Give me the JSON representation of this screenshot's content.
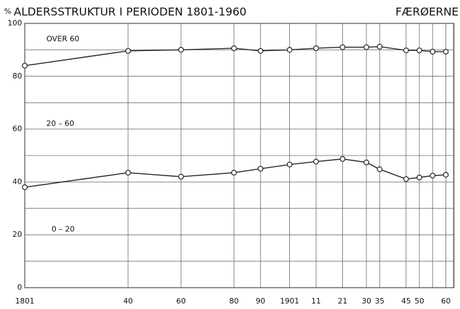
{
  "chart_data": {
    "type": "line",
    "title": "ALDERSSTRUKTUR I PERIODEN 1801-1960",
    "ylabel": "%",
    "subtitle": "FÆRØERNE",
    "annotations": [
      {
        "text": "OVER 60",
        "x": 1806,
        "y": 94
      },
      {
        "text": "20 – 60",
        "x": 1806,
        "y": 62
      },
      {
        "text": "0 – 20",
        "x": 1808,
        "y": 22
      }
    ],
    "x": [
      1801,
      1840,
      1860,
      1880,
      1890,
      1901,
      1911,
      1921,
      1930,
      1935,
      1945,
      1950,
      1955,
      1960
    ],
    "series": [
      {
        "color": "#222",
        "values": [
          84,
          89.6,
          90,
          90.6,
          89.6,
          90,
          90.6,
          91,
          91,
          91.2,
          89.8,
          89.8,
          89.3,
          89.3
        ]
      },
      {
        "color": "#222",
        "values": [
          38,
          43.5,
          42,
          43.5,
          45,
          46.6,
          47.7,
          48.7,
          47.4,
          44.8,
          41.1,
          41.7,
          42.4,
          42.7
        ]
      }
    ],
    "xlim": [
      1801,
      1963
    ],
    "ylim": [
      0,
      100
    ],
    "yticks": [
      0,
      20,
      40,
      60,
      80,
      100
    ],
    "yminor": [
      10,
      30,
      50,
      70,
      90
    ],
    "xticks": [
      1801,
      {
        "value": 1840,
        "label": "40"
      },
      {
        "value": 1860,
        "label": "60"
      },
      {
        "value": 1880,
        "label": "80"
      },
      {
        "value": 1890,
        "label": "90"
      },
      1901,
      {
        "value": 1911,
        "label": "11"
      },
      {
        "value": 1921,
        "label": "21"
      },
      {
        "value": 1930,
        "label": "30"
      },
      {
        "value": 1935,
        "label": "35"
      },
      {
        "value": 1945,
        "label": "45"
      },
      {
        "value": 1950,
        "label": "50"
      },
      {
        "value": 1955,
        "label": null
      },
      {
        "value": 1960,
        "label": "60"
      }
    ],
    "grid": true
  }
}
